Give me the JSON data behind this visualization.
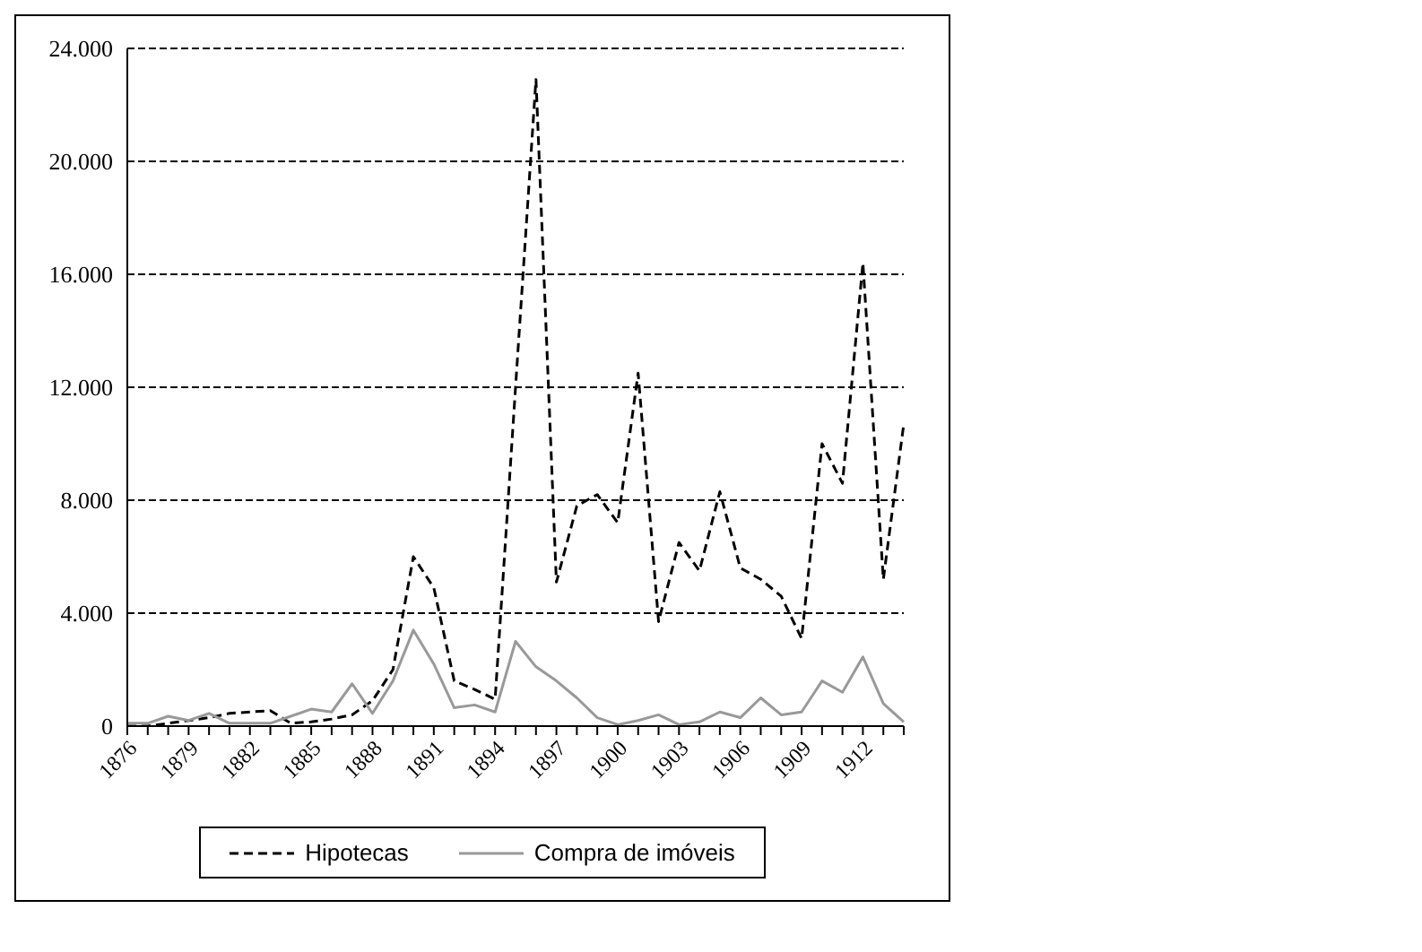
{
  "chart_data": {
    "type": "line",
    "categories": [
      "1876",
      null,
      null,
      "1879",
      null,
      null,
      "1882",
      null,
      null,
      "1885",
      null,
      null,
      "1888",
      null,
      null,
      "1891",
      null,
      null,
      "1894",
      null,
      null,
      "1897",
      null,
      null,
      "1900",
      null,
      null,
      "1903",
      null,
      null,
      "1906",
      null,
      null,
      "1909",
      null,
      null,
      "1912",
      null,
      null
    ],
    "series": [
      {
        "name": "Hipotecas",
        "color": "#000000",
        "line_style": "dashed",
        "values": [
          0,
          0,
          100,
          200,
          300,
          450,
          500,
          550,
          100,
          150,
          250,
          400,
          900,
          2000,
          6000,
          4900,
          1600,
          1300,
          950,
          12000,
          22900,
          5100,
          7800,
          8200,
          7200,
          12500,
          3700,
          6500,
          5500,
          8300,
          5600,
          5200,
          4600,
          3100,
          10000,
          8600,
          16400,
          5200,
          10700
        ]
      },
      {
        "name": "Compra de imóveis",
        "color": "#999999",
        "line_style": "solid",
        "values": [
          100,
          100,
          350,
          200,
          450,
          100,
          100,
          100,
          350,
          600,
          500,
          1500,
          450,
          1600,
          3400,
          2200,
          650,
          750,
          500,
          3000,
          2100,
          1600,
          1000,
          300,
          50,
          200,
          400,
          50,
          150,
          500,
          300,
          1000,
          400,
          500,
          1600,
          1200,
          2450,
          800,
          150
        ]
      }
    ],
    "ylim": [
      0,
      24000
    ],
    "yticks": [
      0,
      {
        "value": 4000,
        "label": "4.000"
      },
      {
        "value": 8000,
        "label": "8.000"
      },
      {
        "value": 12000,
        "label": "12.000"
      },
      {
        "value": 16000,
        "label": "16.000"
      },
      {
        "value": 20000,
        "label": "20.000"
      },
      {
        "value": 24000,
        "label": "24.000"
      }
    ],
    "grid": "y",
    "legend": "bottom",
    "marker": "none"
  }
}
